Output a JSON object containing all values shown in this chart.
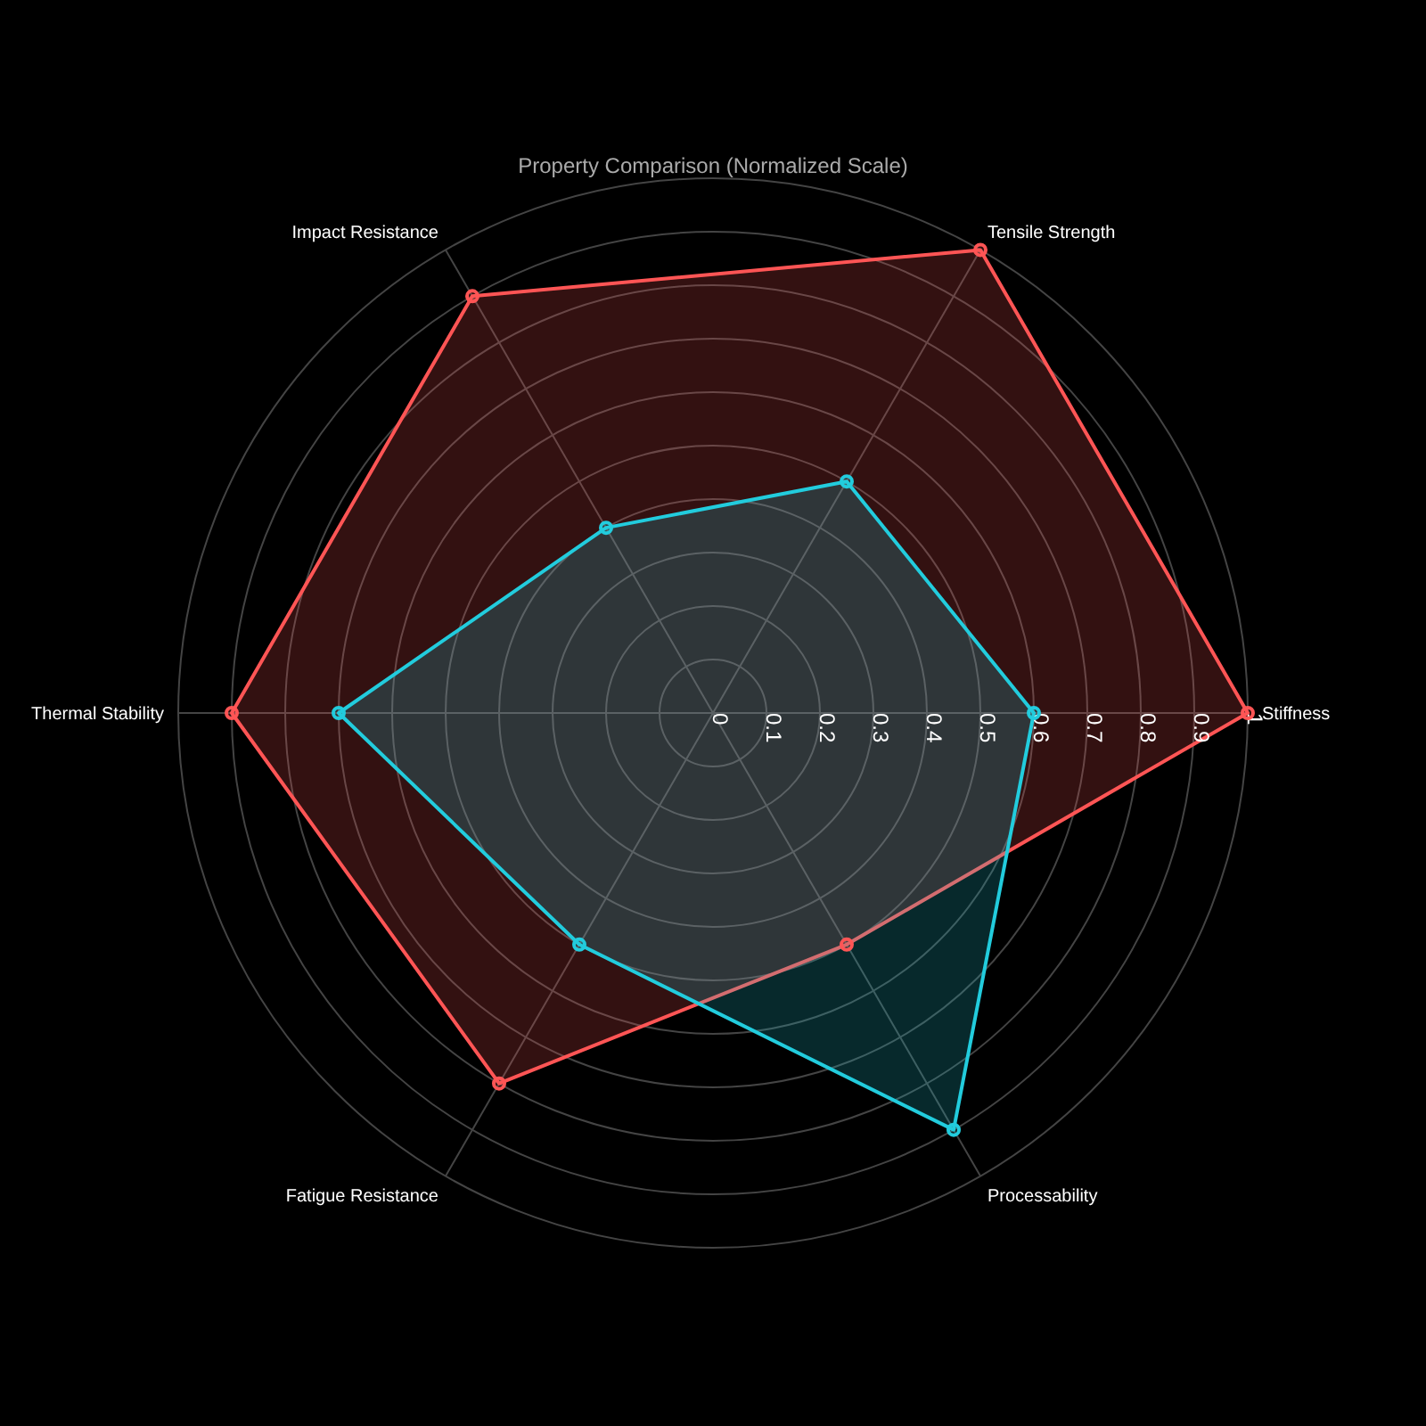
{
  "chart_data": {
    "type": "radar",
    "title": "Property Comparison (Normalized Scale)",
    "categories": [
      "Tensile Strength",
      "Stiffness",
      "Processability",
      "Fatigue Resistance",
      "Thermal Stability",
      "Impact Resistance"
    ],
    "series": [
      {
        "color": "#ff5555",
        "values": [
          1.0,
          1.0,
          0.5,
          0.8,
          0.9,
          0.9
        ]
      },
      {
        "color": "#22ccdd",
        "values": [
          0.5,
          0.6,
          0.9,
          0.5,
          0.7,
          0.4
        ]
      }
    ],
    "ylim": [
      0,
      1
    ],
    "yticks": [
      0,
      0.1,
      0.2,
      0.3,
      0.4,
      0.5,
      0.6,
      0.7,
      0.8,
      0.9,
      1
    ],
    "grid": true,
    "marker": "circle",
    "line_style": "solid",
    "legend": false
  }
}
